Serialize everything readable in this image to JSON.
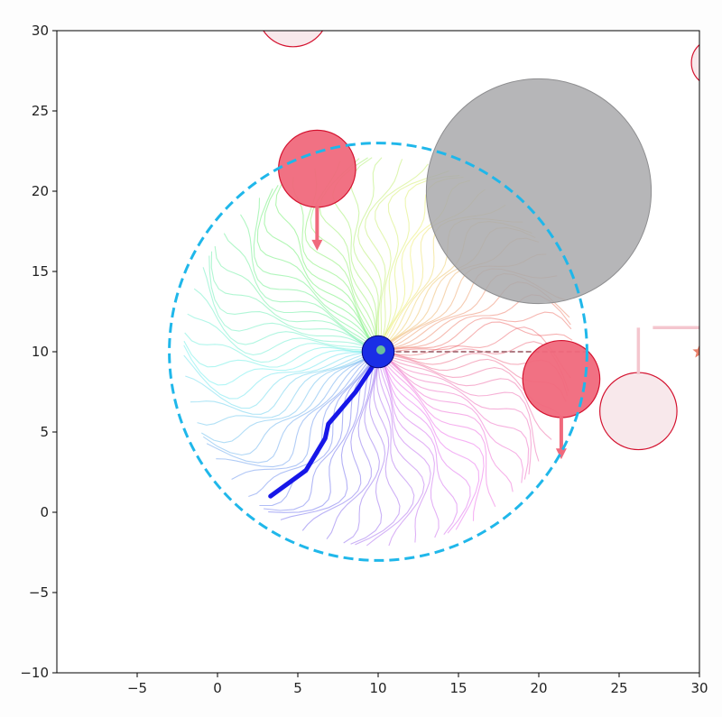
{
  "chart_data": {
    "type": "scatter",
    "title": "",
    "xlabel": "",
    "ylabel": "",
    "xlim": [
      -10,
      30
    ],
    "ylim": [
      -10,
      30
    ],
    "x_ticks": [
      -5,
      0,
      5,
      10,
      15,
      20,
      25,
      30
    ],
    "y_ticks": [
      -10,
      -5,
      0,
      5,
      10,
      15,
      20,
      25,
      30
    ],
    "x_tick_labels": [
      "−5",
      "0",
      "5",
      "10",
      "15",
      "20",
      "25",
      "30"
    ],
    "y_tick_labels": [
      "−10",
      "−5",
      "0",
      "5",
      "10",
      "15",
      "20",
      "25",
      "30"
    ],
    "grid": false,
    "robot": {
      "x": 10,
      "y": 10,
      "r": 1.0,
      "color": "#1a2ee6"
    },
    "sensing_range": {
      "cx": 10,
      "cy": 10,
      "r": 13,
      "color": "#1fb7ea",
      "style": "dashed"
    },
    "trajectory": {
      "color": "#1717e8",
      "points": [
        [
          3.3,
          1.0
        ],
        [
          5.5,
          2.6
        ],
        [
          6.7,
          4.6
        ],
        [
          6.9,
          5.5
        ],
        [
          7.5,
          6.2
        ],
        [
          8.6,
          7.5
        ],
        [
          9.6,
          9.0
        ],
        [
          10,
          10
        ]
      ]
    },
    "rollouts": {
      "count": 80,
      "length": 11.5,
      "curl": 0.35
    },
    "static_obstacle": {
      "cx": 20,
      "cy": 20,
      "r": 7,
      "color": "#a9a9ab"
    },
    "agents": [
      {
        "cx": 6.2,
        "cy": 21.4,
        "r": 2.4,
        "state": "active",
        "vx": 0,
        "vy": -1,
        "arrow_len": 2.7
      },
      {
        "cx": 21.4,
        "cy": 8.3,
        "r": 2.4,
        "state": "active",
        "vx": 0,
        "vy": -1,
        "arrow_len": 2.6
      },
      {
        "cx": 26.2,
        "cy": 6.3,
        "r": 2.4,
        "state": "faded"
      },
      {
        "cx": 4.7,
        "cy": 31.2,
        "r": 2.2,
        "state": "faded"
      },
      {
        "cx": 31.0,
        "cy": 28.0,
        "r": 1.5,
        "state": "faded"
      }
    ],
    "agent_active_color": "#f0697c",
    "agent_faded_color": "#f7e4e8",
    "agent_edge_color": "#d4122f",
    "goal_line": {
      "from": [
        10.6,
        10
      ],
      "to": [
        23.2,
        10
      ],
      "color": "#b07c84"
    },
    "faded_arrows": [
      {
        "from": [
          26.2,
          8.6
        ],
        "to": [
          26.2,
          11.5
        ]
      },
      {
        "from": [
          30.2,
          11.5
        ],
        "to": [
          27.1,
          11.5
        ]
      }
    ],
    "goal_star": {
      "x": 30,
      "y": 10,
      "color": "#e8806a"
    }
  }
}
